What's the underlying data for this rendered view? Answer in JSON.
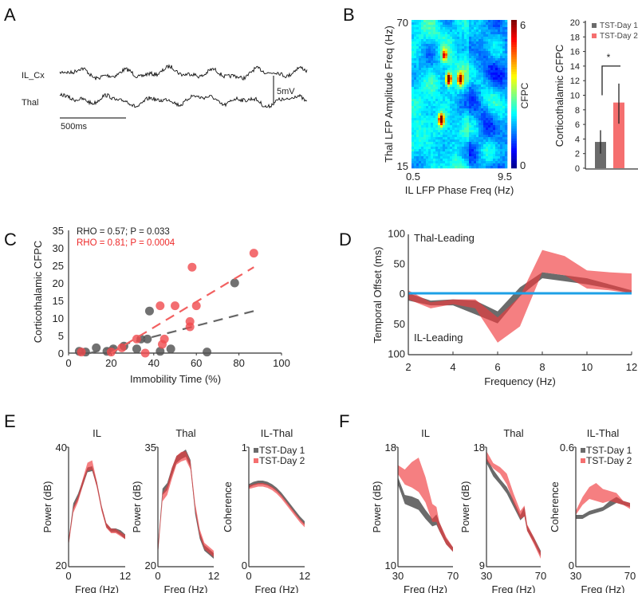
{
  "panel_labels": [
    "A",
    "B",
    "C",
    "D",
    "E",
    "F"
  ],
  "colors": {
    "day1": "#6b6b6b",
    "day2": "#f04a4e",
    "zero_line": "#1ea0e6",
    "trace": "#111111"
  },
  "panel_a": {
    "channels": [
      "IL_Cx",
      "Thal"
    ],
    "scale_voltage": "5mV",
    "scale_time": "500ms"
  },
  "chart_data": [
    {
      "type": "heatmap",
      "xlabel": "IL LFP Phase Freq (Hz)",
      "ylabel": "Thal LFP Amplitude Freq (Hz)",
      "xlim": [
        0.5,
        9.5
      ],
      "ylim": [
        15,
        70
      ],
      "x_tick_labels": [
        "0.5",
        "9.5"
      ],
      "y_tick_labels": [
        "70",
        "15"
      ],
      "colorbar": {
        "label": "CFPC",
        "range": [
          0,
          6
        ],
        "tick_labels": [
          "6",
          "0"
        ],
        "colormap": "jet"
      },
      "hotspots": [
        {
          "x": 4.0,
          "y": 48,
          "value": 6
        },
        {
          "x": 3.3,
          "y": 33,
          "value": 5.5
        },
        {
          "x": 5.1,
          "y": 48,
          "value": 4.5
        },
        {
          "x": 3.6,
          "y": 57,
          "value": 3.5
        }
      ]
    },
    {
      "type": "bar",
      "ylabel": "Corticothalamic CFPC",
      "ylim": [
        0,
        20
      ],
      "y_ticks": [
        0,
        2,
        4,
        6,
        8,
        10,
        12,
        14,
        16,
        18,
        20
      ],
      "categories": [
        "TST-Day 1",
        "TST-Day 2"
      ],
      "values": [
        3.6,
        9.0
      ],
      "error_low": [
        2.0,
        6.1
      ],
      "error_high": [
        5.2,
        11.6
      ],
      "legend": [
        "TST-Day 1",
        "TST-Day 2"
      ],
      "legend_position": "top-right",
      "significance": "*"
    },
    {
      "type": "scatter",
      "xlabel": "Immobility Time (%)",
      "ylabel": "Corticothalamic  CFPC",
      "xlim": [
        0,
        100
      ],
      "ylim": [
        0,
        35
      ],
      "x_ticks": [
        0,
        20,
        40,
        60,
        80,
        100
      ],
      "y_ticks": [
        0,
        5,
        10,
        15,
        20,
        25,
        30,
        35
      ],
      "annotations": [
        "RHO = 0.57; P = 0.033",
        "RHO = 0.81; P = 0.0004"
      ],
      "series": [
        {
          "points": [
            [
              5,
              0.5
            ],
            [
              8,
              0.3
            ],
            [
              13,
              1.5
            ],
            [
              18,
              0.5
            ],
            [
              21,
              1.2
            ],
            [
              26,
              2
            ],
            [
              32,
              1.2
            ],
            [
              34,
              4
            ],
            [
              37,
              4
            ],
            [
              38,
              12
            ],
            [
              43,
              0.5
            ],
            [
              48,
              1.2
            ],
            [
              65,
              0.3
            ],
            [
              78,
              20
            ]
          ],
          "fit": [
            [
              10,
              0
            ],
            [
              87,
              12
            ]
          ]
        },
        {
          "points": [
            [
              6,
              0.3
            ],
            [
              20,
              0.3
            ],
            [
              25,
              1.5
            ],
            [
              32,
              4
            ],
            [
              36,
              0
            ],
            [
              43,
              13.5
            ],
            [
              44,
              2.5
            ],
            [
              45,
              4
            ],
            [
              50,
              13.5
            ],
            [
              57,
              9
            ],
            [
              57,
              7.5
            ],
            [
              58,
              24.5
            ],
            [
              60,
              13.5
            ],
            [
              87,
              28.5
            ]
          ],
          "fit": [
            [
              20,
              0
            ],
            [
              87,
              24.5
            ]
          ]
        }
      ]
    },
    {
      "type": "area",
      "xlabel": "Frequency (Hz)",
      "ylabel": "Temporal Offset (ms)",
      "xlim": [
        2,
        12
      ],
      "ylim": [
        -100,
        100
      ],
      "x_ticks": [
        2,
        4,
        6,
        8,
        10,
        12
      ],
      "y_ticks": [
        100,
        50,
        0,
        -50,
        -100
      ],
      "y_tick_labels": [
        "100",
        "50",
        "0",
        "50",
        "100"
      ],
      "annotations": [
        "Thal-Leading",
        "IL-Leading"
      ],
      "x": [
        2,
        3,
        4,
        5,
        6,
        7,
        8,
        9,
        10,
        11,
        12
      ],
      "series": [
        {
          "lower": [
            -12,
            -20,
            -20,
            -35,
            -50,
            -5,
            25,
            20,
            15,
            8,
            0
          ],
          "upper": [
            0,
            -12,
            -10,
            -12,
            -30,
            10,
            35,
            30,
            25,
            15,
            5
          ]
        },
        {
          "lower": [
            -10,
            -25,
            -18,
            -25,
            -82,
            -55,
            35,
            30,
            8,
            5,
            0
          ],
          "upper": [
            5,
            -15,
            -10,
            -10,
            -40,
            -5,
            72,
            62,
            38,
            35,
            33
          ]
        }
      ]
    },
    {
      "type": "area",
      "title": "IL",
      "xlabel": "Freq (Hz)",
      "ylabel": "Power (dB)",
      "xlim": [
        0,
        12
      ],
      "ylim": [
        20,
        40
      ],
      "x_tick_labels": [
        "0",
        "12"
      ],
      "y_tick_labels": [
        "40",
        "20"
      ],
      "x": [
        0,
        1,
        2,
        3,
        4,
        5,
        6,
        7,
        8,
        9,
        10,
        11,
        12
      ],
      "series": [
        {
          "lower": [
            23.5,
            29.6,
            31.2,
            33.5,
            35.8,
            36,
            33.4,
            29.5,
            26.6,
            25.8,
            25.8,
            25.3,
            24.6
          ],
          "upper": [
            24.5,
            30.6,
            32.2,
            34.5,
            36.6,
            36.8,
            34.2,
            30.2,
            27.3,
            26.4,
            26.4,
            26.1,
            25.4
          ]
        },
        {
          "lower": [
            23.5,
            29,
            30.8,
            33.5,
            36,
            36.2,
            33.2,
            29.3,
            26.5,
            25.6,
            25.6,
            25.1,
            24.6
          ],
          "upper": [
            24.5,
            30,
            31.8,
            34.7,
            37.4,
            37.8,
            34.2,
            30.2,
            27.3,
            26.4,
            26.3,
            25.8,
            25.3
          ]
        }
      ]
    },
    {
      "type": "area",
      "title": "Thal",
      "xlabel": "Freq (Hz)",
      "ylabel": "Power (dB)",
      "xlim": [
        0,
        12
      ],
      "ylim": [
        20,
        35
      ],
      "x_tick_labels": [
        "0",
        "12"
      ],
      "y_tick_labels": [
        "35",
        "20"
      ],
      "x": [
        0,
        1,
        2,
        3,
        4,
        5,
        6,
        7,
        8,
        9,
        10,
        11,
        12
      ],
      "series": [
        {
          "lower": [
            21.5,
            29,
            29.6,
            31.4,
            33,
            33.5,
            33.8,
            32.5,
            26.6,
            23.5,
            22,
            21.5,
            21
          ],
          "upper": [
            22.5,
            29.8,
            30.5,
            32.4,
            33.9,
            34.3,
            34.7,
            33.4,
            27.4,
            24.3,
            22.7,
            22.2,
            21.7
          ]
        },
        {
          "lower": [
            21.5,
            28.2,
            29,
            31,
            32.8,
            33.2,
            33.4,
            32.2,
            27,
            23.8,
            22.2,
            21.7,
            21.2
          ],
          "upper": [
            22.5,
            29.2,
            30.2,
            32.4,
            33.9,
            34.4,
            34.5,
            33.2,
            28,
            24.7,
            23,
            22.5,
            22
          ]
        }
      ]
    },
    {
      "type": "area",
      "title": "IL-Thal",
      "xlabel": "Freq (Hz)",
      "ylabel": "Coherence",
      "xlim": [
        0,
        12
      ],
      "ylim": [
        0,
        1
      ],
      "x_tick_labels": [
        "0",
        "12"
      ],
      "y_tick_labels": [
        "1",
        "0"
      ],
      "legend": [
        "TST-Day 1",
        "TST-Day 2"
      ],
      "legend_position": "top-right",
      "x": [
        0,
        1,
        2,
        3,
        4,
        5,
        6,
        7,
        8,
        9,
        10,
        11,
        12
      ],
      "series": [
        {
          "lower": [
            0.66,
            0.68,
            0.69,
            0.69,
            0.68,
            0.66,
            0.63,
            0.59,
            0.54,
            0.49,
            0.44,
            0.39,
            0.35
          ],
          "upper": [
            0.69,
            0.71,
            0.72,
            0.72,
            0.71,
            0.69,
            0.66,
            0.62,
            0.57,
            0.52,
            0.47,
            0.42,
            0.38
          ]
        },
        {
          "lower": [
            0.65,
            0.66,
            0.67,
            0.67,
            0.66,
            0.64,
            0.61,
            0.57,
            0.52,
            0.47,
            0.42,
            0.37,
            0.33
          ],
          "upper": [
            0.68,
            0.69,
            0.7,
            0.7,
            0.69,
            0.67,
            0.64,
            0.6,
            0.55,
            0.5,
            0.45,
            0.4,
            0.36
          ]
        }
      ]
    },
    {
      "type": "area",
      "title": "IL",
      "xlabel": "Freq (Hz)",
      "ylabel": "Power (dB)",
      "xlim": [
        30,
        70
      ],
      "ylim": [
        10,
        18
      ],
      "x_tick_labels": [
        "30",
        "70"
      ],
      "y_tick_labels": [
        "18",
        "10"
      ],
      "x": [
        30,
        35,
        40,
        45,
        50,
        55,
        58,
        60,
        65,
        70
      ],
      "series": [
        {
          "lower": [
            15.5,
            14.2,
            14,
            13.8,
            13.2,
            12.7,
            12.8,
            12.4,
            11.5,
            11
          ],
          "upper": [
            16,
            14.8,
            14.7,
            14.5,
            13.8,
            13.2,
            13.5,
            13,
            11.9,
            11.3
          ]
        },
        {
          "lower": [
            16.2,
            15.5,
            15.3,
            15,
            14.3,
            13,
            13,
            12.4,
            11.5,
            11
          ],
          "upper": [
            16.8,
            16.5,
            17,
            17.3,
            16,
            14.2,
            14,
            13,
            12,
            11.3
          ]
        }
      ]
    },
    {
      "type": "area",
      "title": "Thal",
      "xlabel": "Freq (Hz)",
      "ylabel": "Power (dB)",
      "xlim": [
        30,
        70
      ],
      "ylim": [
        9,
        18
      ],
      "x_tick_labels": [
        "30",
        "70"
      ],
      "y_tick_labels": [
        "18",
        "9"
      ],
      "x": [
        30,
        35,
        40,
        45,
        50,
        55,
        58,
        60,
        65,
        70
      ],
      "series": [
        {
          "lower": [
            16.8,
            15.8,
            15.2,
            14.5,
            13.5,
            12.5,
            12.8,
            11.7,
            10.8,
            9.8
          ],
          "upper": [
            17.2,
            16.3,
            15.6,
            15,
            14,
            12.9,
            13.5,
            12.1,
            11.2,
            10.2
          ]
        },
        {
          "lower": [
            17,
            16.4,
            16,
            15.2,
            13.8,
            12.6,
            12.8,
            11.7,
            10.7,
            9.6
          ],
          "upper": [
            17.7,
            16.8,
            16.5,
            16,
            14.5,
            13.2,
            13.6,
            12.2,
            11.2,
            10.1
          ]
        }
      ]
    },
    {
      "type": "area",
      "title": "IL-Thal",
      "xlabel": "Freq (Hz)",
      "ylabel": "Coherence",
      "xlim": [
        30,
        70
      ],
      "ylim": [
        0,
        0.6
      ],
      "x_tick_labels": [
        "30",
        "70"
      ],
      "y_tick_labels": [
        "0.6",
        "0"
      ],
      "legend": [
        "TST-Day 1",
        "TST-Day 2"
      ],
      "legend_position": "top-right",
      "x": [
        30,
        35,
        40,
        45,
        50,
        55,
        60,
        65,
        70
      ],
      "series": [
        {
          "lower": [
            0.24,
            0.24,
            0.26,
            0.27,
            0.28,
            0.3,
            0.32,
            0.31,
            0.3
          ],
          "upper": [
            0.26,
            0.26,
            0.28,
            0.29,
            0.3,
            0.33,
            0.35,
            0.33,
            0.32
          ]
        },
        {
          "lower": [
            0.26,
            0.31,
            0.34,
            0.33,
            0.32,
            0.33,
            0.32,
            0.31,
            0.29
          ],
          "upper": [
            0.28,
            0.35,
            0.4,
            0.42,
            0.39,
            0.38,
            0.37,
            0.33,
            0.32
          ]
        }
      ]
    }
  ]
}
